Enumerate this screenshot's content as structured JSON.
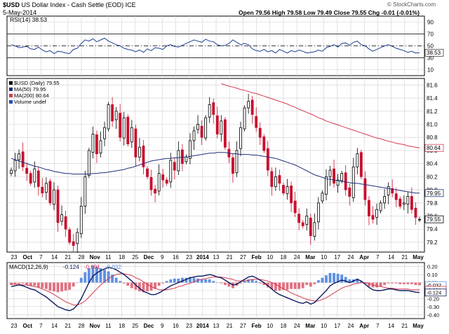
{
  "header": {
    "symbol": "$USD",
    "name": "US Dollar Index - Cash Settle (EOD)",
    "exchange": "ICE",
    "date": "5-May-2014",
    "ohlc": "Open 79.56  High 79.58  Low 79.49  Close 79.55  Chg -0.01 (-0.01%)",
    "watermark": "© StockCharts.com"
  },
  "colors": {
    "up": "#000000",
    "down": "#c8102e",
    "ma50": "#1f2f7a",
    "ma200": "#d6394f",
    "rsi": "#1f3f8f",
    "macd": "#0d1b5e",
    "signal": "#d6394f",
    "hist_pos": "#5f90e0",
    "hist_neg": "#e07080",
    "grid": "#cfcfcf"
  },
  "chart_data": [
    {
      "type": "line",
      "panel": "rsi",
      "legend": "RSI(14) 38.53",
      "y_ticks": [
        10,
        30,
        50,
        70,
        90
      ],
      "ylim": [
        0,
        100
      ],
      "reference_lines": [
        30,
        50,
        70
      ],
      "last_label": "38.53",
      "values": [
        52,
        50,
        47,
        48,
        49,
        45,
        44,
        48,
        43,
        40,
        42,
        37,
        41,
        40,
        38,
        37,
        44,
        46,
        54,
        60,
        58,
        62,
        57,
        60,
        63,
        58,
        55,
        52,
        50,
        46,
        44,
        43,
        40,
        43,
        39,
        45,
        42,
        47,
        46,
        44,
        50,
        52,
        49,
        48,
        51,
        54,
        57,
        60,
        58,
        56,
        61,
        58,
        57,
        52,
        50,
        51,
        54,
        60,
        56,
        52,
        54,
        52,
        45,
        42,
        41,
        44,
        40,
        42,
        38,
        44,
        41,
        38,
        42,
        40,
        43,
        41,
        38,
        39,
        40,
        43,
        41,
        47,
        49,
        52,
        48,
        54,
        55,
        51,
        56,
        58,
        52,
        50,
        45,
        41,
        44,
        47,
        50,
        52,
        49,
        46,
        44,
        42,
        39,
        41,
        38,
        38.53
      ]
    },
    {
      "type": "line",
      "panel": "price",
      "legend": [
        "$USD (Daily) 79.55",
        "MA(50) 79.95",
        "MA(200) 80.64",
        "Volume undef"
      ],
      "y_ticks": [
        79.2,
        79.4,
        79.6,
        79.8,
        80.0,
        80.2,
        80.4,
        80.6,
        80.8,
        81.0,
        81.2,
        81.4,
        81.6
      ],
      "ylim": [
        79.05,
        81.7
      ],
      "last_labels": {
        "ma200": "80.64",
        "ma50": "79.95",
        "close": "79.55"
      },
      "x_tick_labels": [
        "23",
        "Oct",
        "7",
        "14",
        "21",
        "28",
        "Nov",
        "11",
        "18",
        "25",
        "Dec",
        "9",
        "16",
        "23",
        "2014",
        "13",
        "21",
        "27",
        "Feb",
        "10",
        "18",
        "24",
        "Mar",
        "10",
        "17",
        "24",
        "Apr",
        "7",
        "14",
        "21",
        "May"
      ],
      "close": [
        80.3,
        80.45,
        80.55,
        80.35,
        80.25,
        80.1,
        80.32,
        80.05,
        79.95,
        80.1,
        79.8,
        80.0,
        79.5,
        79.62,
        79.4,
        79.2,
        79.15,
        79.35,
        79.75,
        80.2,
        80.6,
        80.85,
        80.55,
        80.75,
        80.95,
        81.3,
        81.05,
        81.2,
        80.8,
        81.1,
        80.7,
        80.95,
        80.5,
        80.65,
        80.35,
        80.2,
        80.0,
        79.95,
        80.25,
        80.15,
        80.1,
        80.45,
        80.3,
        80.6,
        80.4,
        80.5,
        80.75,
        80.9,
        81.0,
        80.8,
        81.1,
        81.3,
        81.15,
        80.85,
        81.05,
        80.65,
        80.5,
        80.25,
        80.6,
        80.95,
        81.25,
        81.35,
        81.15,
        80.95,
        80.8,
        80.6,
        80.3,
        80.05,
        80.2,
        80.1,
        79.95,
        80.05,
        79.8,
        79.65,
        79.5,
        79.45,
        79.6,
        79.3,
        79.5,
        79.8,
        79.95,
        80.2,
        80.3,
        80.1,
        80.15,
        80.25,
        80.0,
        79.9,
        80.35,
        80.55,
        80.2,
        79.85,
        79.6,
        79.55,
        79.7,
        79.8,
        79.9,
        80.05,
        79.95,
        79.85,
        79.75,
        79.8,
        79.9,
        79.7,
        79.58,
        79.55
      ],
      "ma50": [
        80.48,
        80.46,
        80.44,
        80.42,
        80.4,
        80.38,
        80.36,
        80.35,
        80.33,
        80.31,
        80.3,
        80.28,
        80.27,
        80.26,
        80.25,
        80.25,
        80.24,
        80.24,
        80.24,
        80.24,
        80.24,
        80.25,
        80.25,
        80.26,
        80.26,
        80.27,
        80.28,
        80.29,
        80.3,
        80.31,
        80.33,
        80.34,
        80.36,
        80.38,
        80.4,
        80.42,
        80.44,
        80.45,
        80.46,
        80.47,
        80.48,
        80.48,
        80.49,
        80.49,
        80.5,
        80.5,
        80.51,
        80.52,
        80.53,
        80.54,
        80.55,
        80.56,
        80.56,
        80.57,
        80.57,
        80.57,
        80.56,
        80.55,
        80.55,
        80.54,
        80.54,
        80.54,
        80.53,
        80.53,
        80.52,
        80.51,
        80.5,
        80.49,
        80.48,
        80.46,
        80.44,
        80.42,
        80.4,
        80.38,
        80.35,
        80.32,
        80.29,
        80.26,
        80.23,
        80.21,
        80.19,
        80.17,
        80.16,
        80.15,
        80.14,
        80.13,
        80.12,
        80.11,
        80.1,
        80.1,
        80.09,
        80.08,
        80.07,
        80.06,
        80.05,
        80.04,
        80.03,
        80.02,
        80.01,
        80.0,
        79.99,
        79.98,
        79.97,
        79.96,
        79.95,
        79.95
      ],
      "ma200": [
        null,
        null,
        null,
        null,
        null,
        null,
        null,
        null,
        null,
        null,
        null,
        null,
        null,
        null,
        null,
        null,
        null,
        null,
        null,
        null,
        null,
        null,
        null,
        null,
        null,
        null,
        null,
        null,
        null,
        null,
        null,
        null,
        null,
        null,
        null,
        null,
        null,
        null,
        null,
        null,
        null,
        null,
        null,
        null,
        null,
        null,
        null,
        null,
        null,
        null,
        null,
        null,
        null,
        null,
        81.62,
        81.6,
        81.58,
        81.57,
        81.55,
        81.53,
        81.52,
        81.5,
        81.48,
        81.47,
        81.45,
        81.43,
        81.41,
        81.39,
        81.37,
        81.35,
        81.33,
        81.31,
        81.28,
        81.26,
        81.23,
        81.21,
        81.18,
        81.16,
        81.13,
        81.1,
        81.08,
        81.05,
        81.03,
        81.01,
        80.99,
        80.97,
        80.95,
        80.93,
        80.91,
        80.89,
        80.87,
        80.85,
        80.83,
        80.81,
        80.79,
        80.78,
        80.76,
        80.74,
        80.73,
        80.71,
        80.7,
        80.69,
        80.67,
        80.66,
        80.65,
        80.64
      ]
    },
    {
      "type": "line",
      "panel": "macd",
      "legend": [
        "MACD(12,26,9)",
        "-0.124",
        "-0.091",
        "-0.032"
      ],
      "y_ticks": [
        0.2,
        0.1,
        0.0,
        -0.1,
        -0.2,
        -0.3,
        -0.4
      ],
      "ylim": [
        -0.45,
        0.25
      ],
      "last_labels": {
        "histogram": "-0.032",
        "signal": "-0.091",
        "macd": "-0.124"
      },
      "x_tick_labels": [
        "23",
        "Oct",
        "7",
        "14",
        "21",
        "28",
        "Nov",
        "11",
        "18",
        "25",
        "Dec",
        "9",
        "16",
        "23",
        "2014",
        "13",
        "21",
        "27",
        "Feb",
        "10",
        "18",
        "24",
        "Mar",
        "10",
        "17",
        "24",
        "Apr",
        "7",
        "14",
        "21",
        "May"
      ],
      "macd": [
        -0.05,
        -0.04,
        -0.03,
        -0.04,
        -0.06,
        -0.08,
        -0.09,
        -0.12,
        -0.15,
        -0.18,
        -0.22,
        -0.26,
        -0.3,
        -0.32,
        -0.34,
        -0.35,
        -0.33,
        -0.28,
        -0.2,
        -0.1,
        0.0,
        0.08,
        0.12,
        0.15,
        0.17,
        0.19,
        0.18,
        0.16,
        0.13,
        0.1,
        0.06,
        0.02,
        -0.03,
        -0.07,
        -0.11,
        -0.13,
        -0.15,
        -0.15,
        -0.13,
        -0.1,
        -0.07,
        -0.04,
        -0.02,
        0.0,
        0.02,
        0.04,
        0.06,
        0.07,
        0.08,
        0.08,
        0.09,
        0.1,
        0.09,
        0.07,
        0.06,
        0.03,
        0.0,
        -0.03,
        -0.02,
        0.01,
        0.04,
        0.07,
        0.08,
        0.06,
        0.03,
        0.0,
        -0.04,
        -0.08,
        -0.12,
        -0.15,
        -0.17,
        -0.19,
        -0.21,
        -0.23,
        -0.25,
        -0.26,
        -0.24,
        -0.27,
        -0.25,
        -0.2,
        -0.15,
        -0.1,
        -0.04,
        -0.01,
        0.01,
        0.03,
        0.02,
        0.0,
        0.02,
        0.04,
        0.02,
        -0.02,
        -0.06,
        -0.09,
        -0.1,
        -0.1,
        -0.09,
        -0.08,
        -0.08,
        -0.09,
        -0.1,
        -0.1,
        -0.1,
        -0.11,
        -0.12,
        -0.124
      ],
      "signal": [
        -0.02,
        -0.02,
        -0.02,
        -0.03,
        -0.03,
        -0.04,
        -0.05,
        -0.06,
        -0.08,
        -0.1,
        -0.12,
        -0.15,
        -0.18,
        -0.21,
        -0.24,
        -0.26,
        -0.28,
        -0.28,
        -0.26,
        -0.23,
        -0.18,
        -0.13,
        -0.08,
        -0.03,
        0.01,
        0.05,
        0.08,
        0.1,
        0.11,
        0.11,
        0.1,
        0.09,
        0.06,
        0.04,
        0.01,
        -0.02,
        -0.05,
        -0.07,
        -0.09,
        -0.09,
        -0.09,
        -0.08,
        -0.07,
        -0.05,
        -0.04,
        -0.02,
        -0.01,
        0.01,
        0.03,
        0.04,
        0.05,
        0.06,
        0.07,
        0.07,
        0.07,
        0.06,
        0.05,
        0.04,
        0.02,
        0.02,
        0.02,
        0.03,
        0.04,
        0.04,
        0.04,
        0.03,
        0.02,
        0.0,
        -0.02,
        -0.05,
        -0.08,
        -0.1,
        -0.13,
        -0.15,
        -0.17,
        -0.19,
        -0.21,
        -0.22,
        -0.23,
        -0.23,
        -0.21,
        -0.19,
        -0.16,
        -0.13,
        -0.1,
        -0.07,
        -0.05,
        -0.04,
        -0.02,
        -0.01,
        0.0,
        0.0,
        -0.01,
        -0.03,
        -0.04,
        -0.05,
        -0.06,
        -0.07,
        -0.07,
        -0.08,
        -0.08,
        -0.08,
        -0.08,
        -0.09,
        -0.09,
        -0.091
      ]
    }
  ]
}
